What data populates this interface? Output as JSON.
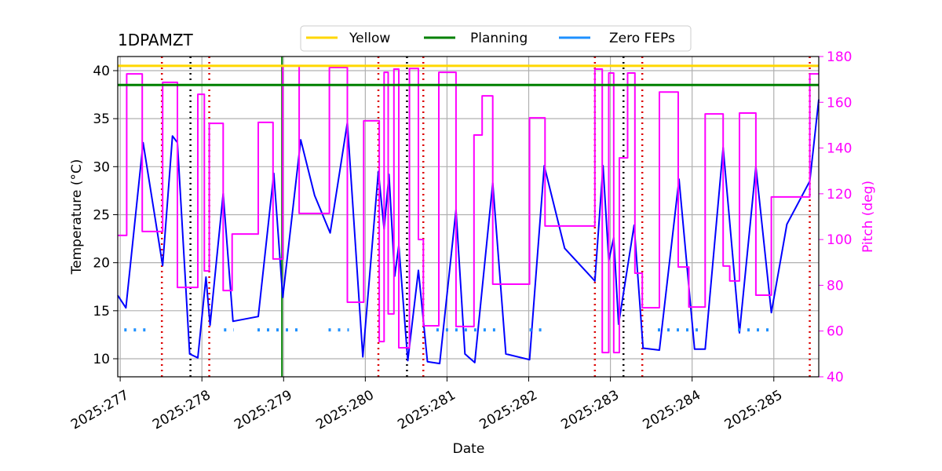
{
  "chart_data": {
    "type": "line",
    "title": "1DPAMZT",
    "xlabel": "Date",
    "ylabel": "Temperature (°C)",
    "y2label": "Pitch (deg)",
    "y2color": "#ff00ff",
    "xlim": [
      276.97,
      285.55
    ],
    "ylim": [
      8.12,
      41.47
    ],
    "y2lim": [
      40,
      180
    ],
    "xticks": [
      {
        "value": 277,
        "label": "2025:277"
      },
      {
        "value": 278,
        "label": "2025:278"
      },
      {
        "value": 279,
        "label": "2025:279"
      },
      {
        "value": 280,
        "label": "2025:280"
      },
      {
        "value": 281,
        "label": "2025:281"
      },
      {
        "value": 282,
        "label": "2025:282"
      },
      {
        "value": 283,
        "label": "2025:283"
      },
      {
        "value": 284,
        "label": "2025:284"
      },
      {
        "value": 285,
        "label": "2025:285"
      }
    ],
    "yticks": [
      10,
      15,
      20,
      25,
      30,
      35,
      40
    ],
    "y2ticks": [
      40,
      60,
      80,
      100,
      120,
      140,
      160,
      180
    ],
    "grid": true,
    "legend": "top",
    "series": [
      {
        "color": "#0000ff",
        "x": [
          276.97,
          277.07,
          277.28,
          277.52,
          277.64,
          277.7,
          277.85,
          277.95,
          278.05,
          278.1,
          278.26,
          278.38,
          278.69,
          278.88,
          278.99,
          279.21,
          279.38,
          279.57,
          279.78,
          279.97,
          280.16,
          280.23,
          280.29,
          280.36,
          280.41,
          280.52,
          280.65,
          280.76,
          280.91,
          281.11,
          281.22,
          281.34,
          281.56,
          281.72,
          282.01,
          282.19,
          282.44,
          282.81,
          282.91,
          282.98,
          283.04,
          283.1,
          283.29,
          283.4,
          283.6,
          283.84,
          284.03,
          284.16,
          284.38,
          284.58,
          284.78,
          284.97,
          285.16,
          285.44,
          285.55
        ],
        "values": [
          16.6,
          15.3,
          32.5,
          19.7,
          33.2,
          32.5,
          10.5,
          10.1,
          18.5,
          13.5,
          27.2,
          13.9,
          14.4,
          29.3,
          16.4,
          32.8,
          27,
          23.1,
          34.6,
          10.2,
          29.5,
          23.5,
          29.2,
          18.6,
          21.8,
          9.8,
          19.2,
          9.7,
          9.5,
          25.5,
          10.5,
          9.6,
          28.3,
          10.5,
          9.9,
          30.1,
          21.5,
          18.1,
          30.1,
          20.2,
          22.6,
          13.6,
          23.9,
          11.1,
          10.9,
          28.7,
          11.0,
          11.0,
          32.0,
          12.7,
          30.0,
          14.8,
          24,
          28.5,
          37
        ]
      },
      {
        "color": "#ff00ff",
        "axis": "y2",
        "x": [
          276.97,
          277.08,
          277.08,
          277.27,
          277.27,
          277.52,
          277.52,
          277.7,
          277.7,
          277.95,
          277.95,
          278.03,
          278.03,
          278.09,
          278.09,
          278.26,
          278.26,
          278.37,
          278.37,
          278.69,
          278.69,
          278.87,
          278.87,
          278.99,
          278.99,
          279.19,
          279.19,
          279.56,
          279.56,
          279.78,
          279.78,
          279.98,
          279.98,
          280.17,
          280.17,
          280.23,
          280.23,
          280.28,
          280.28,
          280.35,
          280.35,
          280.41,
          280.41,
          280.54,
          280.54,
          280.65,
          280.65,
          280.71,
          280.71,
          280.9,
          280.9,
          281.11,
          281.11,
          281.33,
          281.33,
          281.43,
          281.43,
          281.56,
          281.56,
          282.01,
          282.01,
          282.2,
          282.2,
          282.81,
          282.81,
          282.9,
          282.9,
          282.98,
          282.98,
          283.04,
          283.04,
          283.11,
          283.11,
          283.21,
          283.21,
          283.3,
          283.3,
          283.39,
          283.39,
          283.6,
          283.6,
          283.83,
          283.83,
          283.96,
          283.96,
          284.16,
          284.16,
          284.38,
          284.38,
          284.46,
          284.46,
          284.58,
          284.58,
          284.78,
          284.78,
          284.97,
          284.97,
          285.44,
          285.44,
          285.55
        ],
        "values": [
          101.8,
          101.8,
          172.4,
          172.4,
          103.5,
          103.5,
          168.7,
          168.7,
          79.1,
          79.1,
          163.5,
          163.5,
          86.3,
          86.3,
          150.8,
          150.8,
          77.7,
          77.7,
          102.4,
          102.4,
          151.2,
          151.2,
          91.5,
          91.5,
          175.9,
          175.9,
          111.4,
          111.4,
          175.2,
          175.2,
          72.6,
          72.6,
          151.9,
          151.9,
          55.4,
          55.4,
          173.1,
          173.1,
          67.5,
          67.5,
          174.5,
          174.5,
          52.7,
          52.7,
          174.8,
          174.8,
          100,
          100,
          62.3,
          62.3,
          173.1,
          173.1,
          62,
          62,
          145.7,
          145.7,
          162.8,
          162.8,
          80.5,
          80.5,
          153.2,
          153.2,
          105.9,
          105.9,
          174.5,
          174.5,
          50.6,
          50.6,
          172.8,
          172.8,
          50.6,
          50.6,
          135.7,
          135.7,
          172.8,
          172.8,
          85.3,
          85.3,
          70.2,
          70.2,
          164.5,
          164.5,
          88,
          88,
          70.5,
          70.5,
          154.9,
          154.9,
          88.4,
          88.4,
          81.9,
          81.9,
          155.3,
          155.3,
          75.7,
          75.7,
          118.6,
          118.6,
          172.4,
          172.4
        ]
      },
      {
        "name": "Yellow",
        "color": "#ffd700",
        "x": [
          276.97,
          285.55
        ],
        "values": [
          40.5,
          40.5
        ]
      },
      {
        "name": "Planning",
        "color": "#008000",
        "x": [
          276.97,
          285.55
        ],
        "values": [
          38.5,
          38.5
        ]
      },
      {
        "name": "Zero FEPs",
        "color": "#1e90ff",
        "dash": "dotted",
        "x": [
          277.05,
          277.31,
          null,
          278.27,
          278.39,
          null,
          278.68,
          279.23,
          null,
          279.55,
          279.8,
          null,
          280.87,
          281.6,
          null,
          282.01,
          282.21,
          null,
          283.58,
          284.08,
          null,
          284.56,
          284.99
        ],
        "values": [
          13,
          13,
          null,
          13,
          13,
          null,
          13,
          13,
          null,
          13,
          13,
          null,
          13,
          13,
          null,
          13,
          13,
          null,
          13,
          13,
          null,
          13,
          13
        ]
      }
    ],
    "vlines": [
      {
        "x": 277.51,
        "color": "#dd0000",
        "dash": "dotted"
      },
      {
        "x": 278.09,
        "color": "#dd0000",
        "dash": "dotted"
      },
      {
        "x": 280.16,
        "color": "#dd0000",
        "dash": "dotted"
      },
      {
        "x": 280.71,
        "color": "#dd0000",
        "dash": "dotted"
      },
      {
        "x": 282.81,
        "color": "#dd0000",
        "dash": "dotted"
      },
      {
        "x": 283.39,
        "color": "#dd0000",
        "dash": "dotted"
      },
      {
        "x": 285.44,
        "color": "#dd0000",
        "dash": "dotted"
      },
      {
        "x": 277.86,
        "color": "#000000",
        "dash": "dotted"
      },
      {
        "x": 280.51,
        "color": "#000000",
        "dash": "dotted"
      },
      {
        "x": 283.16,
        "color": "#000000",
        "dash": "dotted"
      },
      {
        "x": 278.98,
        "color": "#008000",
        "dash": "solid"
      }
    ]
  }
}
